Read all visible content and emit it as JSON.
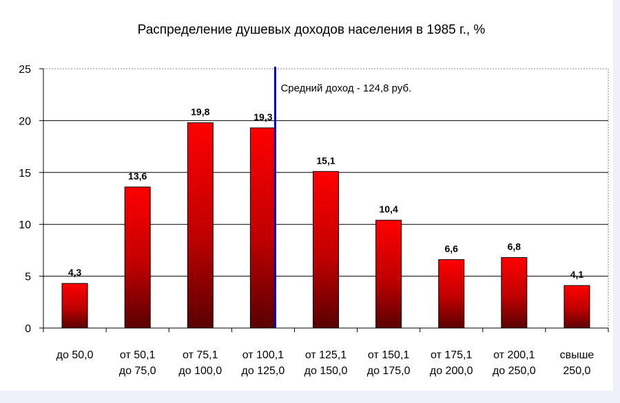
{
  "chart_data": {
    "type": "bar",
    "title": "Распределение душевых доходов населения в 1985 г., %",
    "categories": [
      [
        "до 50,0"
      ],
      [
        "от 50,1",
        "до 75,0"
      ],
      [
        "от 75,1",
        "до 100,0"
      ],
      [
        "от 100,1",
        "до 125,0"
      ],
      [
        "от 125,1",
        "до 150,0"
      ],
      [
        "от 150,1",
        "до 175,0"
      ],
      [
        "от 175,1",
        "до 200,0"
      ],
      [
        "от 200,1",
        "до 250,0"
      ],
      [
        "свыше",
        "250,0"
      ]
    ],
    "values": [
      4.3,
      13.6,
      19.8,
      19.3,
      15.1,
      10.4,
      6.6,
      6.8,
      4.1
    ],
    "value_labels": [
      "4,3",
      "13,6",
      "19,8",
      "19,3",
      "15,1",
      "10,4",
      "6,6",
      "6,8",
      "4,1"
    ],
    "ylim": [
      0,
      25
    ],
    "yticks": [
      0,
      5,
      10,
      15,
      20,
      25
    ],
    "grid": true,
    "legend": "none",
    "bar_color_top": "#ff0000",
    "bar_color_bottom": "#5a0000",
    "reference_line": {
      "label": "Средний доход - 124,8 руб.",
      "position_between_categories": [
        3,
        4
      ],
      "color": "#0000cc"
    }
  }
}
